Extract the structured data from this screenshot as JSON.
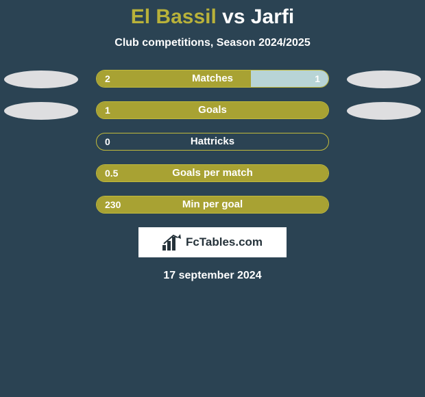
{
  "background_color": "#2b4353",
  "title": {
    "player_a": "El Bassil",
    "vs": "vs",
    "player_b": "Jarfi",
    "color_a": "#b9b23a",
    "color_vs": "#ffffff",
    "color_b": "#ffffff",
    "fontsize": 30
  },
  "subtitle": {
    "text": "Club competitions, Season 2024/2025",
    "fontsize": 16,
    "color": "#ffffff"
  },
  "bar_style": {
    "track_border_color": "#c3bb3c",
    "left_fill": "#a8a233",
    "right_fill": "#b8d4d6",
    "track_width": 340,
    "track_height": 26,
    "border_radius": 13,
    "label_fontsize": 15,
    "value_fontsize": 14
  },
  "ellipse_style": {
    "width": 108,
    "height": 26,
    "fill": "#dedee0"
  },
  "stats": [
    {
      "label": "Matches",
      "value_a": "2",
      "value_b": "1",
      "pct_a": 66.7,
      "pct_b": 33.3,
      "show_ellipse_left": true,
      "show_ellipse_right": true,
      "show_val_b": true
    },
    {
      "label": "Goals",
      "value_a": "1",
      "value_b": "",
      "pct_a": 100,
      "pct_b": 0,
      "show_ellipse_left": true,
      "show_ellipse_right": true,
      "show_val_b": false
    },
    {
      "label": "Hattricks",
      "value_a": "0",
      "value_b": "",
      "pct_a": 0,
      "pct_b": 0,
      "show_ellipse_left": false,
      "show_ellipse_right": false,
      "show_val_b": false
    },
    {
      "label": "Goals per match",
      "value_a": "0.5",
      "value_b": "",
      "pct_a": 100,
      "pct_b": 0,
      "show_ellipse_left": false,
      "show_ellipse_right": false,
      "show_val_b": false
    },
    {
      "label": "Min per goal",
      "value_a": "230",
      "value_b": "",
      "pct_a": 100,
      "pct_b": 0,
      "show_ellipse_left": false,
      "show_ellipse_right": false,
      "show_val_b": false
    }
  ],
  "logo": {
    "text": "FcTables.com",
    "box_bg": "#ffffff",
    "text_color": "#25323a",
    "fontsize": 17
  },
  "date": {
    "text": "17 september 2024",
    "fontsize": 16,
    "color": "#ffffff"
  }
}
